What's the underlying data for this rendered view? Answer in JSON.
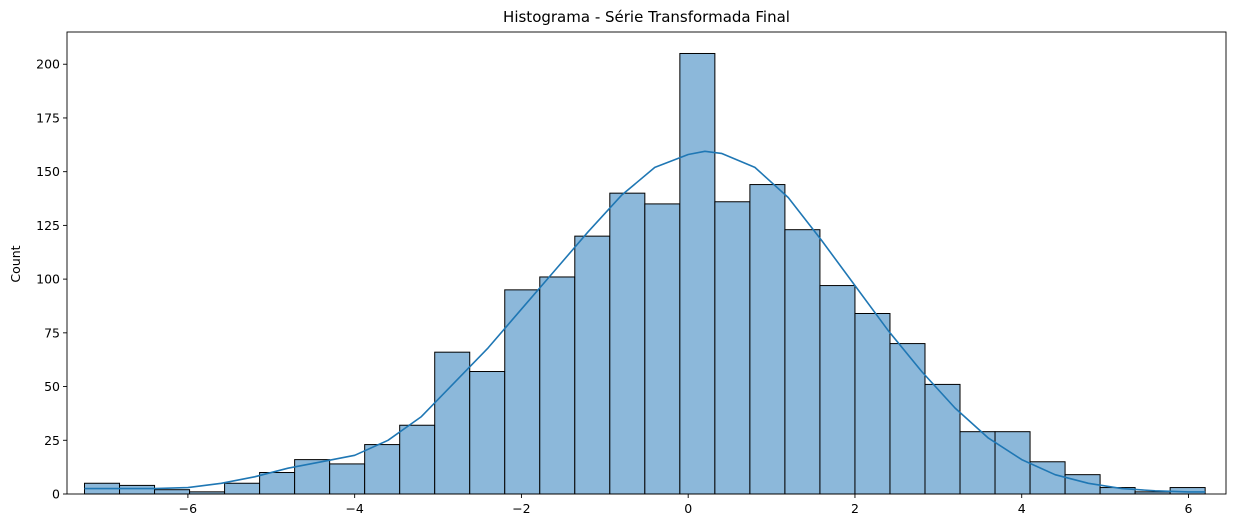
{
  "chart_data": {
    "type": "bar",
    "title": "Histograma - Série Transformada Final",
    "xlabel": "",
    "ylabel": "Count",
    "xlim": [
      -7.45,
      6.45
    ],
    "ylim": [
      0,
      215
    ],
    "x_ticks": [
      -6,
      -4,
      -2,
      0,
      2,
      4,
      6
    ],
    "x_tick_labels": [
      "−6",
      "−4",
      "−2",
      "0",
      "2",
      "4",
      "6"
    ],
    "y_ticks": [
      0,
      25,
      50,
      75,
      100,
      125,
      150,
      175,
      200
    ],
    "y_tick_labels": [
      "0",
      "25",
      "50",
      "75",
      "100",
      "125",
      "150",
      "175",
      "200"
    ],
    "bins": [
      {
        "x0": -7.24,
        "x1": -6.82,
        "count": 5
      },
      {
        "x0": -6.82,
        "x1": -6.4,
        "count": 4
      },
      {
        "x0": -6.4,
        "x1": -5.98,
        "count": 2
      },
      {
        "x0": -5.98,
        "x1": -5.56,
        "count": 1
      },
      {
        "x0": -5.56,
        "x1": -5.14,
        "count": 5
      },
      {
        "x0": -5.14,
        "x1": -4.72,
        "count": 10
      },
      {
        "x0": -4.72,
        "x1": -4.3,
        "count": 16
      },
      {
        "x0": -4.3,
        "x1": -3.88,
        "count": 14
      },
      {
        "x0": -3.88,
        "x1": -3.46,
        "count": 23
      },
      {
        "x0": -3.46,
        "x1": -3.04,
        "count": 32
      },
      {
        "x0": -3.04,
        "x1": -2.62,
        "count": 66
      },
      {
        "x0": -2.62,
        "x1": -2.2,
        "count": 57
      },
      {
        "x0": -2.2,
        "x1": -1.78,
        "count": 95
      },
      {
        "x0": -1.78,
        "x1": -1.36,
        "count": 101
      },
      {
        "x0": -1.36,
        "x1": -0.94,
        "count": 120
      },
      {
        "x0": -0.94,
        "x1": -0.52,
        "count": 140
      },
      {
        "x0": -0.52,
        "x1": -0.1,
        "count": 135
      },
      {
        "x0": -0.1,
        "x1": 0.32,
        "count": 205
      },
      {
        "x0": 0.32,
        "x1": 0.74,
        "count": 136
      },
      {
        "x0": 0.74,
        "x1": 1.16,
        "count": 144
      },
      {
        "x0": 1.16,
        "x1": 1.58,
        "count": 123
      },
      {
        "x0": 1.58,
        "x1": 2.0,
        "count": 97
      },
      {
        "x0": 2.0,
        "x1": 2.42,
        "count": 84
      },
      {
        "x0": 2.42,
        "x1": 2.84,
        "count": 70
      },
      {
        "x0": 2.84,
        "x1": 3.26,
        "count": 51
      },
      {
        "x0": 3.26,
        "x1": 3.68,
        "count": 29
      },
      {
        "x0": 3.68,
        "x1": 4.1,
        "count": 29
      },
      {
        "x0": 4.1,
        "x1": 4.52,
        "count": 15
      },
      {
        "x0": 4.52,
        "x1": 4.94,
        "count": 9
      },
      {
        "x0": 4.94,
        "x1": 5.36,
        "count": 3
      },
      {
        "x0": 5.36,
        "x1": 5.78,
        "count": 1
      },
      {
        "x0": 5.78,
        "x1": 6.2,
        "count": 3
      }
    ],
    "kde": {
      "x": [
        -7.24,
        -6.8,
        -6.4,
        -6.0,
        -5.6,
        -5.2,
        -4.8,
        -4.4,
        -4.0,
        -3.6,
        -3.2,
        -2.8,
        -2.4,
        -2.0,
        -1.6,
        -1.2,
        -0.8,
        -0.4,
        0.0,
        0.2,
        0.4,
        0.8,
        1.2,
        1.6,
        2.0,
        2.4,
        2.8,
        3.2,
        3.6,
        4.0,
        4.4,
        4.8,
        5.2,
        5.6,
        6.0,
        6.2
      ],
      "y": [
        2.5,
        2.5,
        2.5,
        3,
        5,
        8,
        12,
        15,
        18,
        25,
        36,
        52,
        68,
        86,
        104,
        122,
        139,
        152,
        158,
        159.5,
        158.5,
        152,
        138,
        118,
        97,
        76,
        57,
        40,
        26,
        16,
        9,
        5,
        2.5,
        1.5,
        1,
        1
      ]
    },
    "colors": {
      "bar_fill": "#8cb8da",
      "bar_edge": "#000000",
      "kde_line": "#1f77b4",
      "axes": "#000000"
    },
    "grid": false,
    "legend": "none"
  }
}
